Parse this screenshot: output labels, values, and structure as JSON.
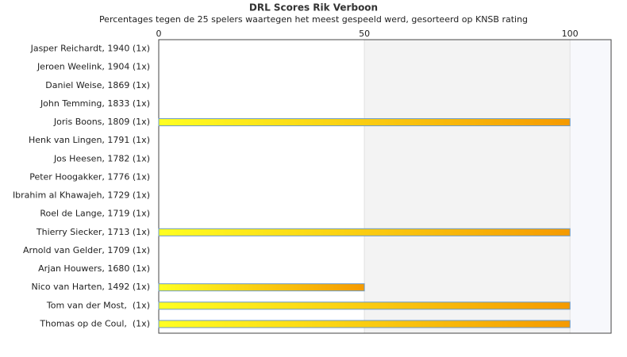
{
  "chart_data": {
    "type": "barh",
    "title": "DRL Scores Rik Verboon",
    "subtitle": "Percentages tegen de 25 spelers waartegen het meest gespeeld werd, gesorteerd op KNSB rating",
    "categories": [
      "Jasper Reichardt, 1940 (1x)",
      "Jeroen Weelink, 1904 (1x)",
      "Daniel Weise, 1869 (1x)",
      "John Temming, 1833 (1x)",
      "Joris Boons, 1809 (1x)",
      "Henk van Lingen, 1791 (1x)",
      "Jos Heesen, 1782 (1x)",
      "Peter Hoogakker, 1776 (1x)",
      "Ibrahim al Khawajeh, 1729 (1x)",
      "Roel de Lange, 1719 (1x)",
      "Thierry Siecker, 1713 (1x)",
      "Arnold van Gelder, 1709 (1x)",
      "Arjan Houwers, 1680 (1x)",
      "Nico van Harten, 1492 (1x)",
      "Tom van der Most,  (1x)",
      "Thomas op de Coul,  (1x)"
    ],
    "values": [
      0,
      0,
      0,
      0,
      100,
      0,
      0,
      0,
      0,
      0,
      100,
      0,
      0,
      50,
      100,
      100
    ],
    "gradient": [
      "#ffff22",
      "#f59a00"
    ],
    "xlim": [
      0,
      110
    ],
    "xticks": [
      0,
      50,
      100
    ],
    "grid": true
  }
}
